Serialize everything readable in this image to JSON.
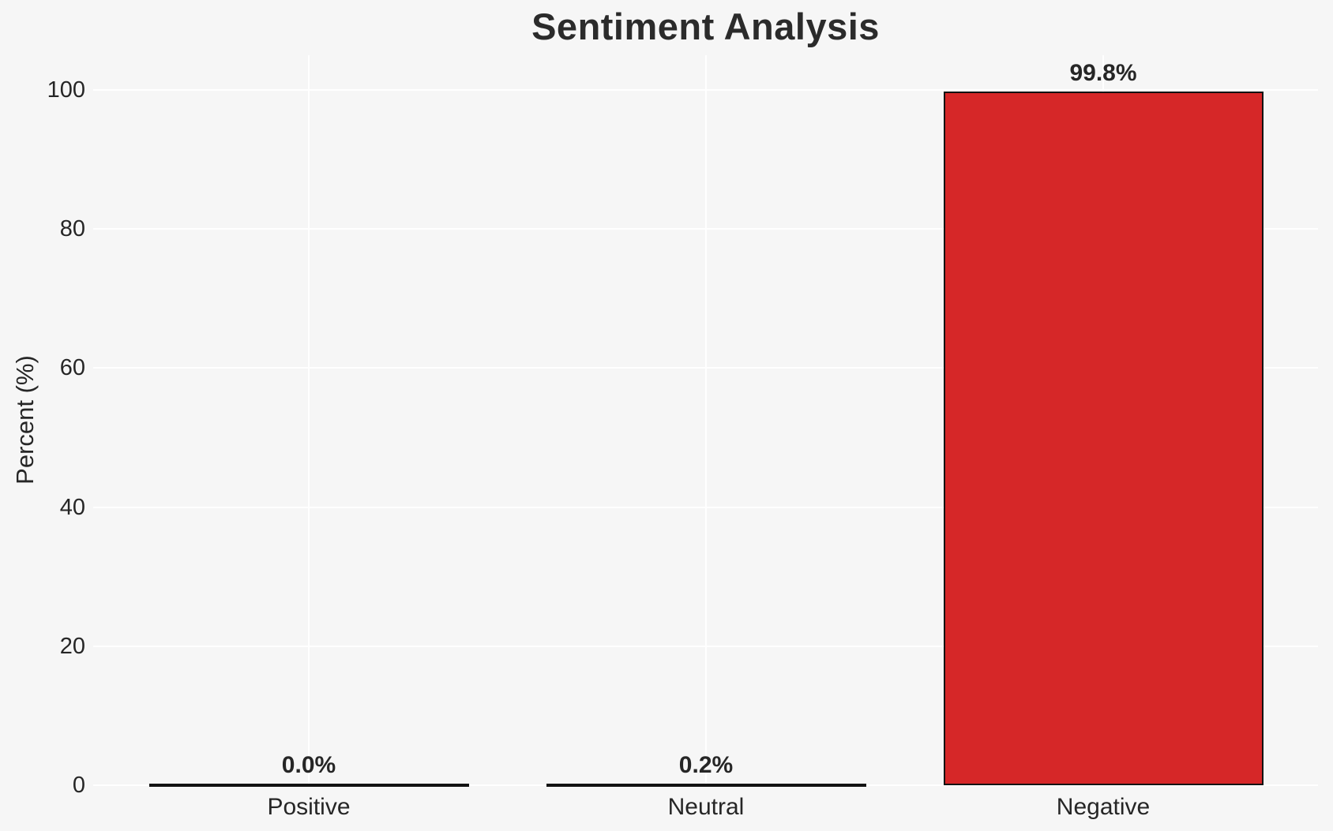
{
  "chart_data": {
    "type": "bar",
    "title": "Sentiment Analysis",
    "categories": [
      "Positive",
      "Neutral",
      "Negative"
    ],
    "values": [
      0.0,
      0.2,
      99.8
    ],
    "bar_labels": [
      "0.0%",
      "0.2%",
      "99.8%"
    ],
    "xlabel": "",
    "ylabel": "Percent (%)",
    "yticks": [
      0,
      20,
      40,
      60,
      80,
      100
    ],
    "ytick_labels": [
      "0",
      "20",
      "40",
      "60",
      "80",
      "100"
    ],
    "ylim": [
      0,
      105
    ],
    "grid": true,
    "legend": false,
    "colors": {
      "bar_fill": "#d62728",
      "bar_edge": "#131313",
      "background": "#f6f6f6",
      "gridline": "#ffffff",
      "text": "#262626",
      "title_text": "#2b2b2b"
    }
  }
}
